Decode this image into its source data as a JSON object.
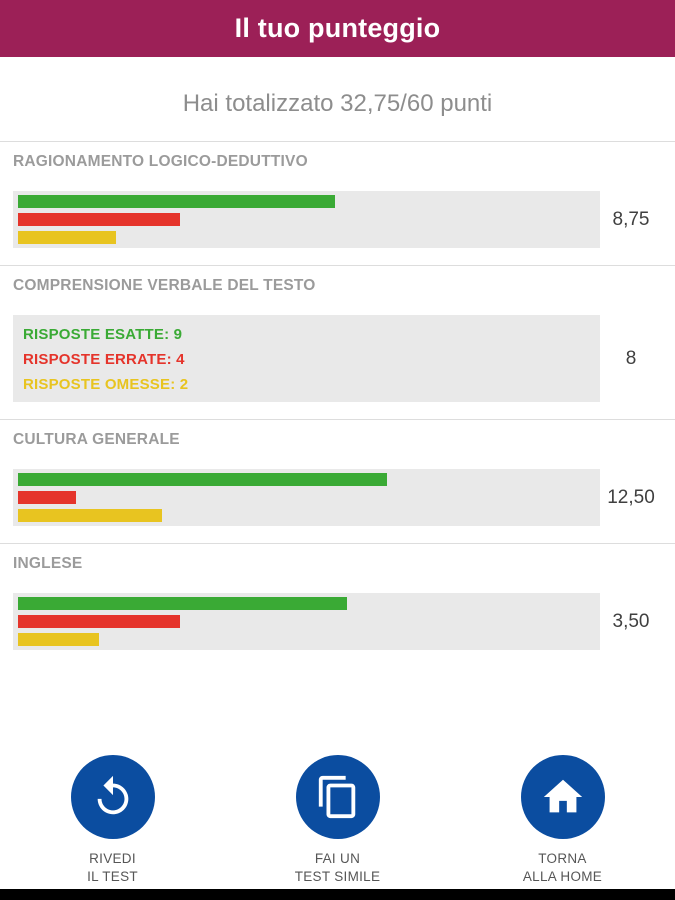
{
  "header": {
    "title": "Il tuo punteggio"
  },
  "summary": {
    "text": "Hai totalizzato 32,75/60 punti"
  },
  "sections": [
    {
      "label": "RAGIONAMENTO LOGICO-DEDUTTIVO",
      "score": "8,75",
      "bars": {
        "correct_pct": 55,
        "wrong_pct": 28,
        "omitted_pct": 17
      }
    },
    {
      "label": "COMPRENSIONE VERBALE DEL TESTO",
      "score": "8",
      "lines": [
        {
          "text": "RISPOSTE ESATTE: 9"
        },
        {
          "text": "RISPOSTE ERRATE: 4"
        },
        {
          "text": "RISPOSTE OMESSE: 2"
        }
      ]
    },
    {
      "label": "CULTURA GENERALE",
      "score": "12,50",
      "bars": {
        "correct_pct": 64,
        "wrong_pct": 10,
        "omitted_pct": 25
      }
    },
    {
      "label": "INGLESE",
      "score": "3,50",
      "bars": {
        "correct_pct": 57,
        "wrong_pct": 28,
        "omitted_pct": 14
      }
    }
  ],
  "actions": [
    {
      "line1": "RIVEDI",
      "line2": "IL TEST",
      "icon": "replay-icon"
    },
    {
      "line1": "FAI UN",
      "line2": "TEST SIMILE",
      "icon": "copy-icon"
    },
    {
      "line1": "TORNA",
      "line2": "ALLA HOME",
      "icon": "home-icon"
    }
  ],
  "colors": {
    "header_bg": "#9c2057",
    "bar_green": "#3aaa35",
    "bar_red": "#e5342b",
    "bar_yellow": "#e8c420",
    "panel_bg": "#e9e9e9",
    "button_blue": "#0b4da0"
  }
}
